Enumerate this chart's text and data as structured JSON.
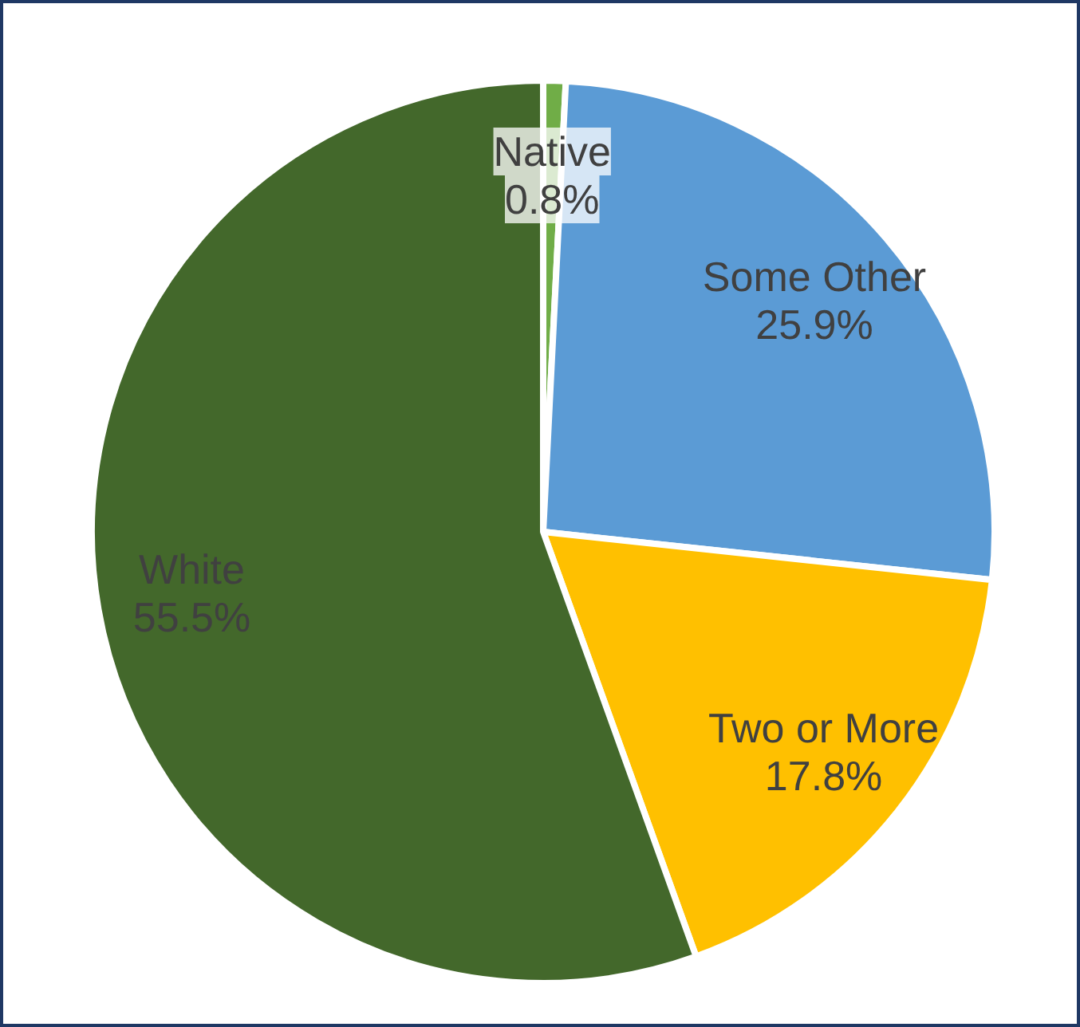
{
  "chart_data": {
    "type": "pie",
    "categories": [
      "Native",
      "Some Other",
      "Two or More",
      "White"
    ],
    "values": [
      0.8,
      25.9,
      17.8,
      55.5
    ],
    "colors": [
      "#70ad47",
      "#5b9bd5",
      "#ffc000",
      "#43682b"
    ],
    "value_labels": [
      "0.8%",
      "25.9%",
      "17.8%",
      "55.5%"
    ]
  }
}
